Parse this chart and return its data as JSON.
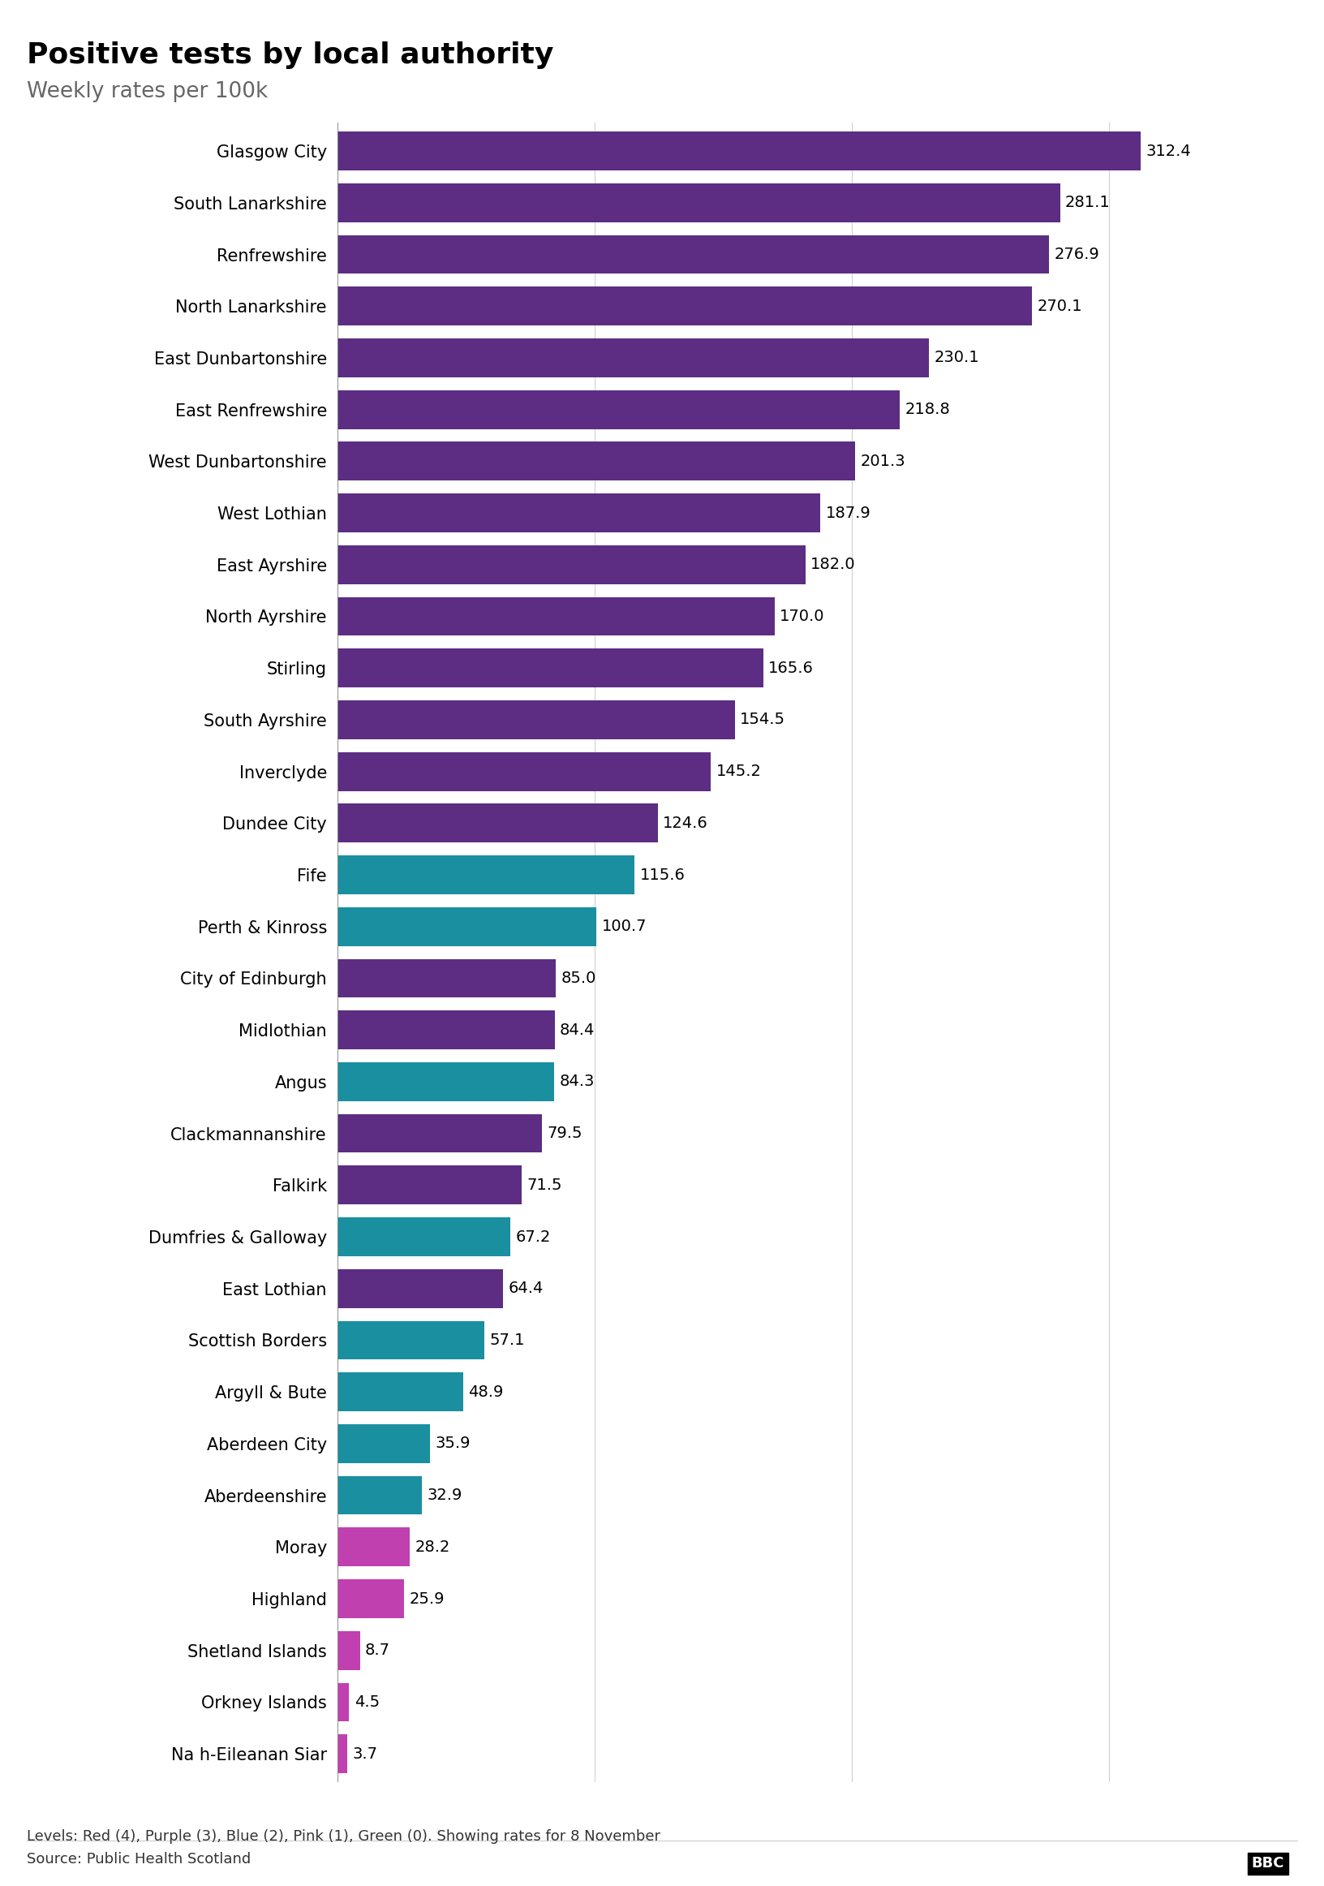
{
  "title": "Positive tests by local authority",
  "subtitle": "Weekly rates per 100k",
  "footer": "Levels: Red (4), Purple (3), Blue (2), Pink (1), Green (0). Showing rates for 8 November",
  "source": "Source: Public Health Scotland",
  "categories": [
    "Glasgow City",
    "South Lanarkshire",
    "Renfrewshire",
    "North Lanarkshire",
    "East Dunbartonshire",
    "East Renfrewshire",
    "West Dunbartonshire",
    "West Lothian",
    "East Ayrshire",
    "North Ayrshire",
    "Stirling",
    "South Ayrshire",
    "Inverclyde",
    "Dundee City",
    "Fife",
    "Perth & Kinross",
    "City of Edinburgh",
    "Midlothian",
    "Angus",
    "Clackmannanshire",
    "Falkirk",
    "Dumfries & Galloway",
    "East Lothian",
    "Scottish Borders",
    "Argyll & Bute",
    "Aberdeen City",
    "Aberdeenshire",
    "Moray",
    "Highland",
    "Shetland Islands",
    "Orkney Islands",
    "Na h-Eileanan Siar"
  ],
  "values": [
    312.4,
    281.1,
    276.9,
    270.1,
    230.1,
    218.8,
    201.3,
    187.9,
    182.0,
    170.0,
    165.6,
    154.5,
    145.2,
    124.6,
    115.6,
    100.7,
    85.0,
    84.4,
    84.3,
    79.5,
    71.5,
    67.2,
    64.4,
    57.1,
    48.9,
    35.9,
    32.9,
    28.2,
    25.9,
    8.7,
    4.5,
    3.7
  ],
  "colors": [
    "#5c2d82",
    "#5c2d82",
    "#5c2d82",
    "#5c2d82",
    "#5c2d82",
    "#5c2d82",
    "#5c2d82",
    "#5c2d82",
    "#5c2d82",
    "#5c2d82",
    "#5c2d82",
    "#5c2d82",
    "#5c2d82",
    "#5c2d82",
    "#1a8fa0",
    "#1a8fa0",
    "#5c2d82",
    "#5c2d82",
    "#1a8fa0",
    "#5c2d82",
    "#5c2d82",
    "#1a8fa0",
    "#5c2d82",
    "#1a8fa0",
    "#1a8fa0",
    "#1a8fa0",
    "#1a8fa0",
    "#c040b0",
    "#c040b0",
    "#c040b0",
    "#c040b0",
    "#c040b0"
  ],
  "background_color": "#ffffff",
  "grid_color": "#d0d0d0",
  "xlim": [
    0,
    340
  ],
  "bar_height": 0.75,
  "label_fontsize": 15,
  "value_fontsize": 14,
  "title_fontsize": 26,
  "subtitle_fontsize": 19,
  "footer_fontsize": 13,
  "source_fontsize": 13
}
